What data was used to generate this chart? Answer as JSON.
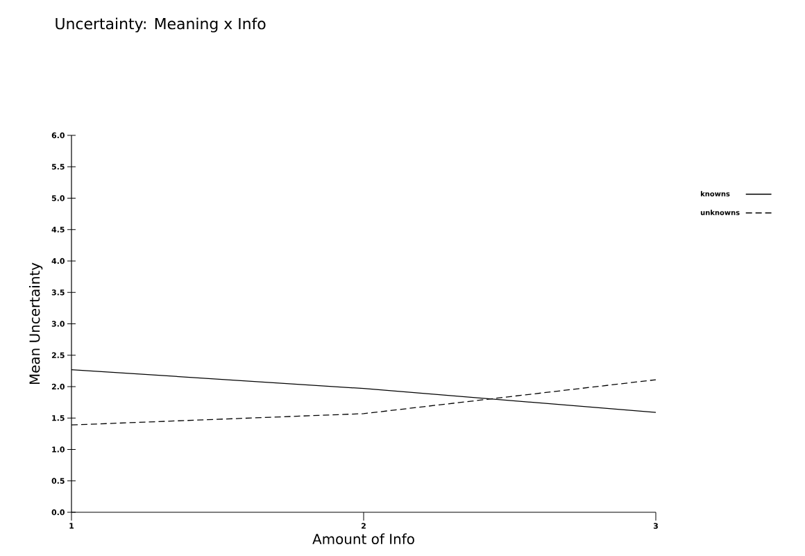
{
  "chart_data": {
    "type": "line",
    "title": "Uncertainty: Meaning x Info",
    "xlabel": "Amount of Info",
    "ylabel": "Mean Uncertainty",
    "x": [
      1,
      2,
      3
    ],
    "series": [
      {
        "name": "knowns",
        "color": "#000000",
        "line_style": "solid",
        "values": [
          2.27,
          1.97,
          1.59
        ]
      },
      {
        "name": "unknowns",
        "color": "#000000",
        "line_style": "dashed",
        "values": [
          1.39,
          1.57,
          2.11
        ]
      }
    ],
    "xlim": [
      1,
      3
    ],
    "xticks": [
      1,
      2,
      3
    ],
    "ylim": [
      0,
      6
    ],
    "yticks": [
      {
        "value": 0,
        "label": "0.0"
      },
      {
        "value": 0.5,
        "label": "0.5"
      },
      {
        "value": 1,
        "label": "1.0"
      },
      {
        "value": 1.5,
        "label": "1.5"
      },
      {
        "value": 2,
        "label": "2.0"
      },
      {
        "value": 2.5,
        "label": "2.5"
      },
      {
        "value": 3,
        "label": "3.0"
      },
      {
        "value": 3.5,
        "label": "3.5"
      },
      {
        "value": 4,
        "label": "4.0"
      },
      {
        "value": 4.5,
        "label": "4.5"
      },
      {
        "value": 5,
        "label": "5.0"
      },
      {
        "value": 5.5,
        "label": "5.5"
      },
      {
        "value": 6,
        "label": "6.0"
      }
    ],
    "legend": "right"
  }
}
